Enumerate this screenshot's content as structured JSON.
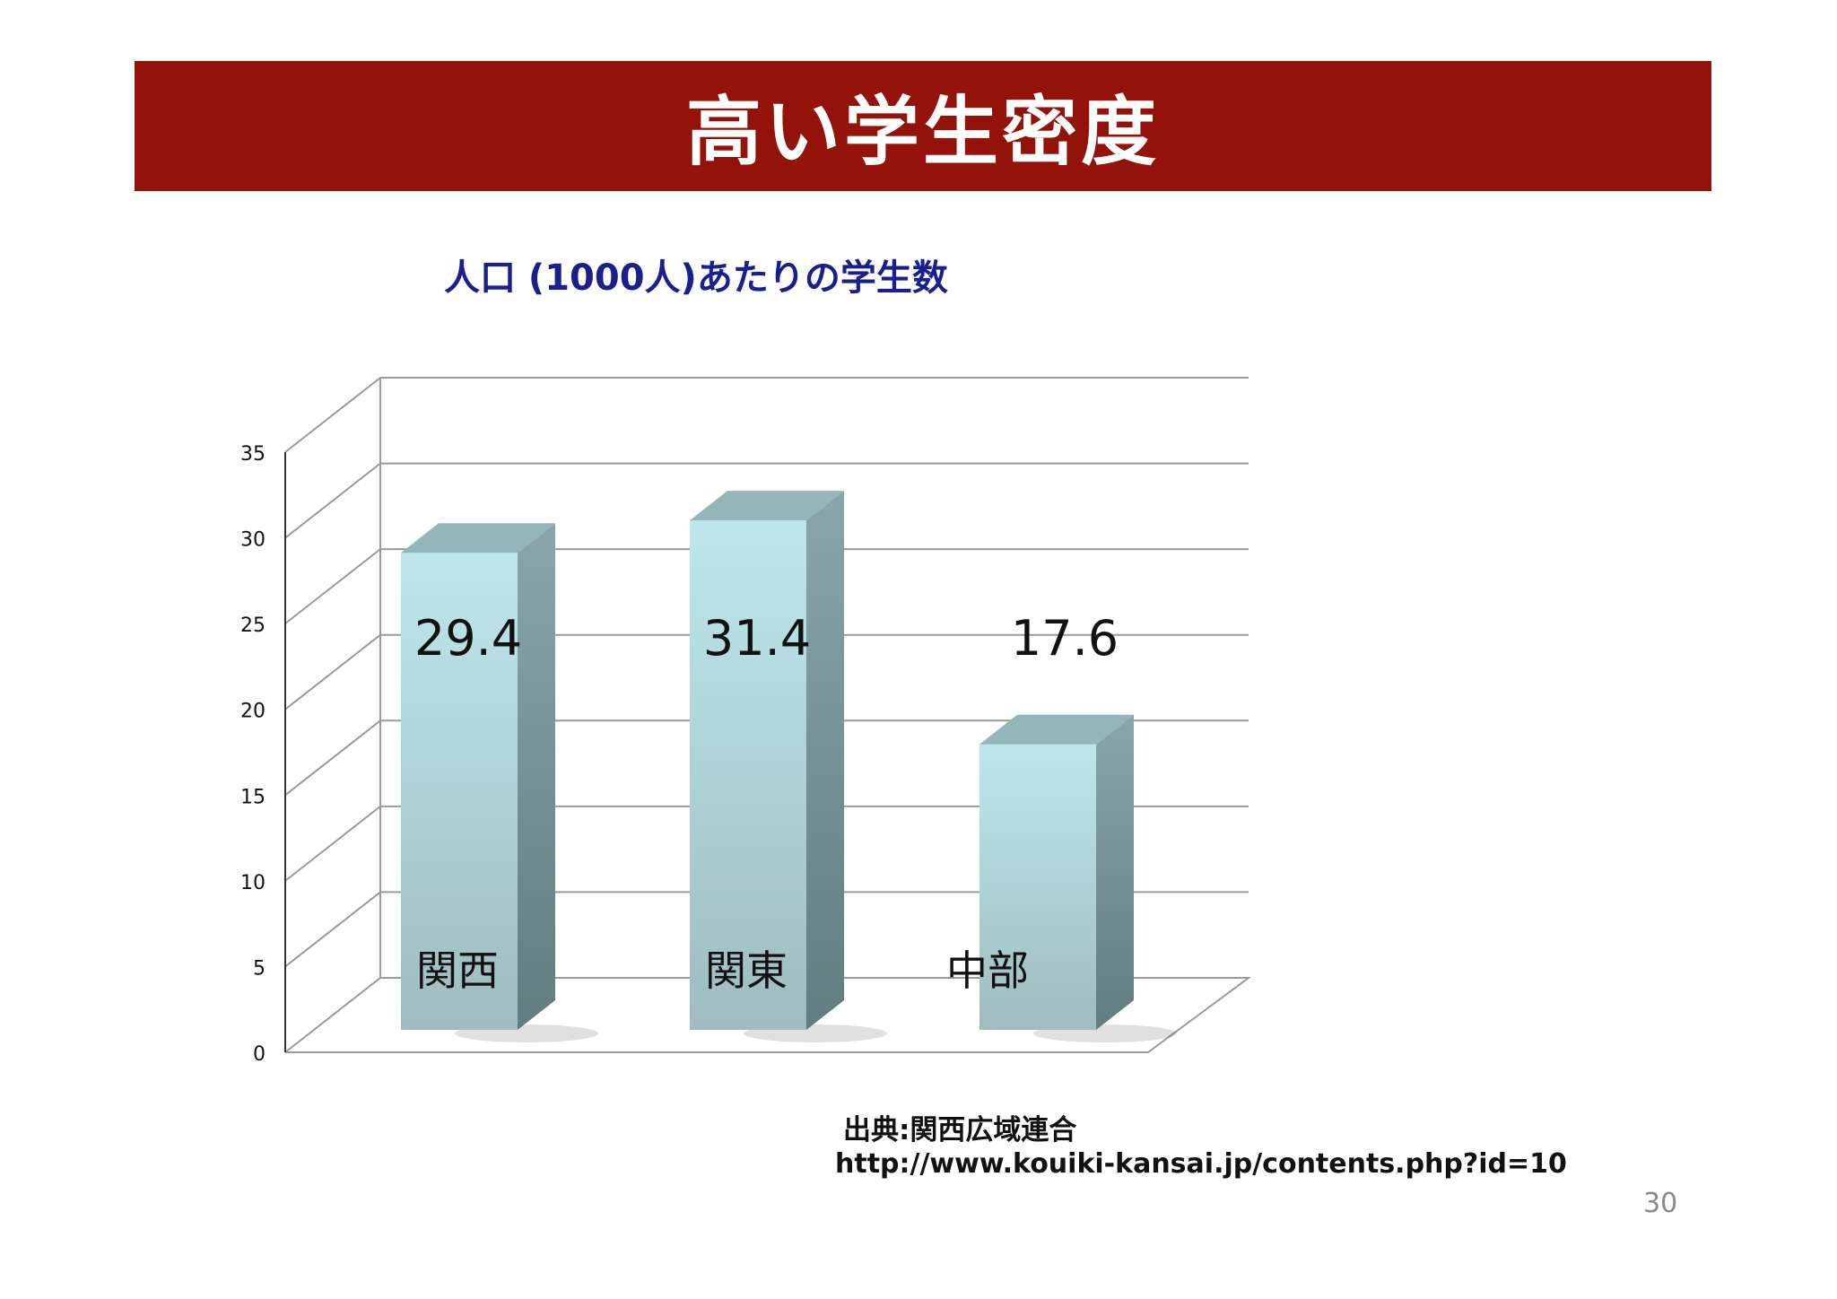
{
  "slide": {
    "title": "高い学生密度",
    "source_label": "出典:関西広域連合",
    "source_url": "http://www.kouiki-kansai.jp/contents.php?id=10",
    "page_number": "30"
  },
  "colors": {
    "title_bar": "#93120a",
    "chart_title": "#1a1f8c",
    "bar_front_top": "#bde7ea",
    "bar_front_bottom": "#9fbcc0",
    "bar_side": "#6f8e92",
    "bar_top": "#93b6b8"
  },
  "chart_data": {
    "type": "bar",
    "title": "人口 (1000人)あたりの学生数",
    "categories": [
      "関西",
      "関東",
      "中部"
    ],
    "values": [
      29.4,
      31.4,
      17.6
    ],
    "value_labels": [
      "29.4",
      "31.4",
      "17.6"
    ],
    "yticks": [
      "0",
      "5",
      "10",
      "15",
      "20",
      "25",
      "30",
      "35"
    ],
    "ylim": [
      0,
      35
    ],
    "grid": true,
    "legend": "none",
    "style": "3d"
  }
}
